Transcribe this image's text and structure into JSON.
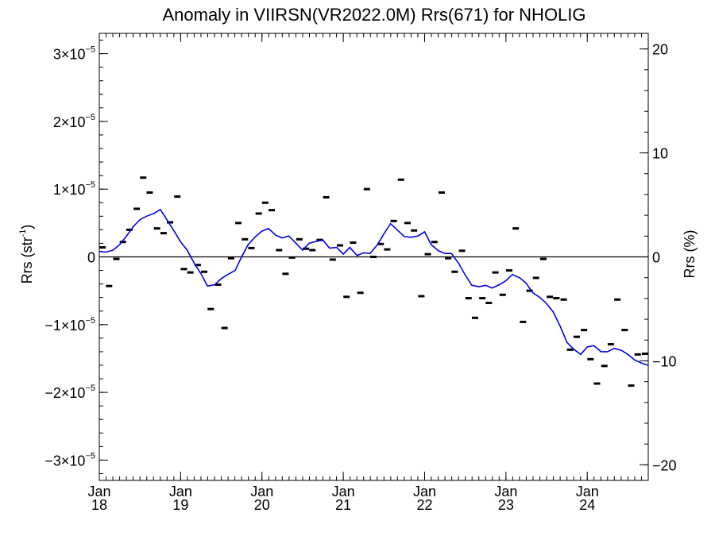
{
  "chart_data": {
    "type": "scatter",
    "title": "Anomaly in VIIRSN(VR2022.0M) Rrs(671) for NHOLIG",
    "ylabel_left": "Rrs (str",
    "ylabel_left_sup": "-1",
    "ylabel_left_close": ")",
    "ylabel_right": "Rrs (%)",
    "xlim": [
      2018.0,
      2024.75
    ],
    "ylim_left": [
      -3.3e-05,
      3.3e-05
    ],
    "ylim_right": [
      -21.5,
      21.5
    ],
    "grid": false,
    "x_ticks": [
      {
        "value": 2018,
        "month": "Jan",
        "year": "18"
      },
      {
        "value": 2019,
        "month": "Jan",
        "year": "19"
      },
      {
        "value": 2020,
        "month": "Jan",
        "year": "20"
      },
      {
        "value": 2021,
        "month": "Jan",
        "year": "21"
      },
      {
        "value": 2022,
        "month": "Jan",
        "year": "22"
      },
      {
        "value": 2023,
        "month": "Jan",
        "year": "23"
      },
      {
        "value": 2024,
        "month": "Jan",
        "year": "24"
      }
    ],
    "y_left_ticks": [
      {
        "value": 3e-05,
        "mant": "3",
        "exp": "−5"
      },
      {
        "value": 2e-05,
        "mant": "2",
        "exp": "−5"
      },
      {
        "value": 1e-05,
        "mant": "1",
        "exp": "−5"
      },
      {
        "value": 0,
        "mant": "0",
        "exp": ""
      },
      {
        "value": -1e-05,
        "mant": "−1",
        "exp": "−5"
      },
      {
        "value": -2e-05,
        "mant": "−2",
        "exp": "−5"
      },
      {
        "value": -3e-05,
        "mant": "−3",
        "exp": "−5"
      }
    ],
    "y_right_ticks": [
      {
        "value": 20,
        "label": "20"
      },
      {
        "value": 10,
        "label": "10"
      },
      {
        "value": 0,
        "label": "0"
      },
      {
        "value": -10,
        "label": "−10"
      },
      {
        "value": -20,
        "label": "−20"
      }
    ],
    "reference_line_y": 0,
    "series": [
      {
        "kind": "monthly_anomaly",
        "marker": "dash",
        "color": "#000000",
        "x": [
          2018.04,
          2018.12,
          2018.21,
          2018.29,
          2018.37,
          2018.46,
          2018.54,
          2018.62,
          2018.71,
          2018.79,
          2018.87,
          2018.96,
          2019.04,
          2019.12,
          2019.21,
          2019.29,
          2019.37,
          2019.46,
          2019.54,
          2019.62,
          2019.71,
          2019.79,
          2019.87,
          2019.96,
          2020.04,
          2020.12,
          2020.21,
          2020.29,
          2020.37,
          2020.46,
          2020.54,
          2020.62,
          2020.71,
          2020.79,
          2020.87,
          2020.96,
          2021.04,
          2021.12,
          2021.21,
          2021.29,
          2021.37,
          2021.46,
          2021.54,
          2021.62,
          2021.71,
          2021.79,
          2021.87,
          2021.96,
          2022.04,
          2022.12,
          2022.21,
          2022.29,
          2022.37,
          2022.46,
          2022.54,
          2022.62,
          2022.71,
          2022.79,
          2022.87,
          2022.96,
          2023.04,
          2023.12,
          2023.21,
          2023.29,
          2023.37,
          2023.46,
          2023.54,
          2023.62,
          2023.71,
          2023.79,
          2023.87,
          2023.96,
          2024.04,
          2024.12,
          2024.21,
          2024.29,
          2024.37,
          2024.46,
          2024.54,
          2024.62,
          2024.71
        ],
        "y": [
          1.4e-06,
          -4.3e-06,
          -3e-07,
          2.2e-06,
          4e-06,
          7.1e-06,
          1.17e-05,
          9.5e-06,
          4.2e-06,
          3.5e-06,
          5.1e-06,
          8.9e-06,
          -1.8e-06,
          -2.3e-06,
          -1.2e-06,
          -2.2e-06,
          -7.7e-06,
          -4.1e-06,
          -1.05e-05,
          -2e-07,
          5e-06,
          2.6e-06,
          1.3e-06,
          6.4e-06,
          8e-06,
          6.9e-06,
          1e-06,
          -2.5e-06,
          -1e-07,
          2.6e-06,
          1.2e-06,
          1e-06,
          2.5e-06,
          8.8e-06,
          -4e-07,
          1.7e-06,
          -5.9e-06,
          2.1e-06,
          -5.3e-06,
          1e-05,
          0.0,
          1.9e-06,
          1.1e-06,
          5.3e-06,
          1.14e-05,
          5e-06,
          3.9e-06,
          -5.8e-06,
          4e-07,
          2.2e-06,
          9.5e-06,
          -2e-07,
          -2.2e-06,
          9e-07,
          -6.1e-06,
          -9e-06,
          -6.1e-06,
          -6.8e-06,
          -2.3e-06,
          -5.6e-06,
          -2e-06,
          4.2e-06,
          -9.6e-06,
          -5e-06,
          -3.1e-06,
          -3e-07,
          -5.9e-06,
          -6.1e-06,
          -6.3e-06,
          -1.37e-05,
          -1.18e-05,
          -1.08e-05,
          -1.51e-05,
          -1.87e-05,
          -1.61e-05,
          -1.29e-05,
          -6.3e-06,
          -1.08e-05,
          -1.9e-05,
          -1.44e-05,
          -1.43e-05
        ]
      },
      {
        "kind": "running_mean",
        "marker": "line",
        "color": "#0000e6",
        "x": [
          2018.0,
          2018.08,
          2018.17,
          2018.25,
          2018.33,
          2018.42,
          2018.5,
          2018.58,
          2018.67,
          2018.75,
          2018.83,
          2018.92,
          2019.0,
          2019.08,
          2019.17,
          2019.25,
          2019.33,
          2019.42,
          2019.5,
          2019.58,
          2019.67,
          2019.75,
          2019.83,
          2019.92,
          2020.0,
          2020.08,
          2020.17,
          2020.25,
          2020.33,
          2020.42,
          2020.5,
          2020.58,
          2020.67,
          2020.75,
          2020.83,
          2020.92,
          2021.0,
          2021.08,
          2021.17,
          2021.25,
          2021.33,
          2021.42,
          2021.5,
          2021.58,
          2021.67,
          2021.75,
          2021.83,
          2021.92,
          2022.0,
          2022.08,
          2022.17,
          2022.25,
          2022.33,
          2022.42,
          2022.5,
          2022.58,
          2022.67,
          2022.75,
          2022.83,
          2022.92,
          2023.0,
          2023.08,
          2023.17,
          2023.25,
          2023.33,
          2023.42,
          2023.5,
          2023.58,
          2023.67,
          2023.75,
          2023.83,
          2023.92,
          2024.0,
          2024.08,
          2024.17,
          2024.25,
          2024.33,
          2024.42,
          2024.5,
          2024.58,
          2024.67,
          2024.75
        ],
        "y": [
          8e-07,
          7e-07,
          1e-06,
          1.8e-06,
          3e-06,
          4.5e-06,
          5.5e-06,
          6e-06,
          6.4e-06,
          7e-06,
          5.5e-06,
          3.8e-06,
          2.2e-06,
          1e-06,
          -1e-06,
          -2.5e-06,
          -4.3e-06,
          -4.1e-06,
          -3.2e-06,
          -2.6e-06,
          -2e-06,
          0.0,
          1.8e-06,
          3e-06,
          3.8e-06,
          4.2e-06,
          3.2e-06,
          2.8e-06,
          3.1e-06,
          2e-06,
          1e-06,
          2e-06,
          2.3e-06,
          2.5e-06,
          1.3e-06,
          1.4e-06,
          4e-07,
          1.4e-06,
          2e-07,
          6e-07,
          5e-07,
          1.8e-06,
          3.4e-06,
          4.9e-06,
          3.9e-06,
          3e-06,
          2.9e-06,
          3.1e-06,
          3.7e-06,
          1.8e-06,
          9e-07,
          5e-07,
          5e-07,
          -1e-06,
          -2.7e-06,
          -4.2e-06,
          -4.4e-06,
          -4.2e-06,
          -4.6e-06,
          -4.1e-06,
          -3.5e-06,
          -2.6e-06,
          -3.1e-06,
          -3.9e-06,
          -5.3e-06,
          -6e-06,
          -6.9e-06,
          -8.1e-06,
          -1.03e-05,
          -1.26e-05,
          -1.36e-05,
          -1.44e-05,
          -1.33e-05,
          -1.31e-05,
          -1.4e-05,
          -1.4e-05,
          -1.35e-05,
          -1.38e-05,
          -1.44e-05,
          -1.52e-05,
          -1.57e-05,
          -1.6e-05
        ]
      }
    ]
  }
}
